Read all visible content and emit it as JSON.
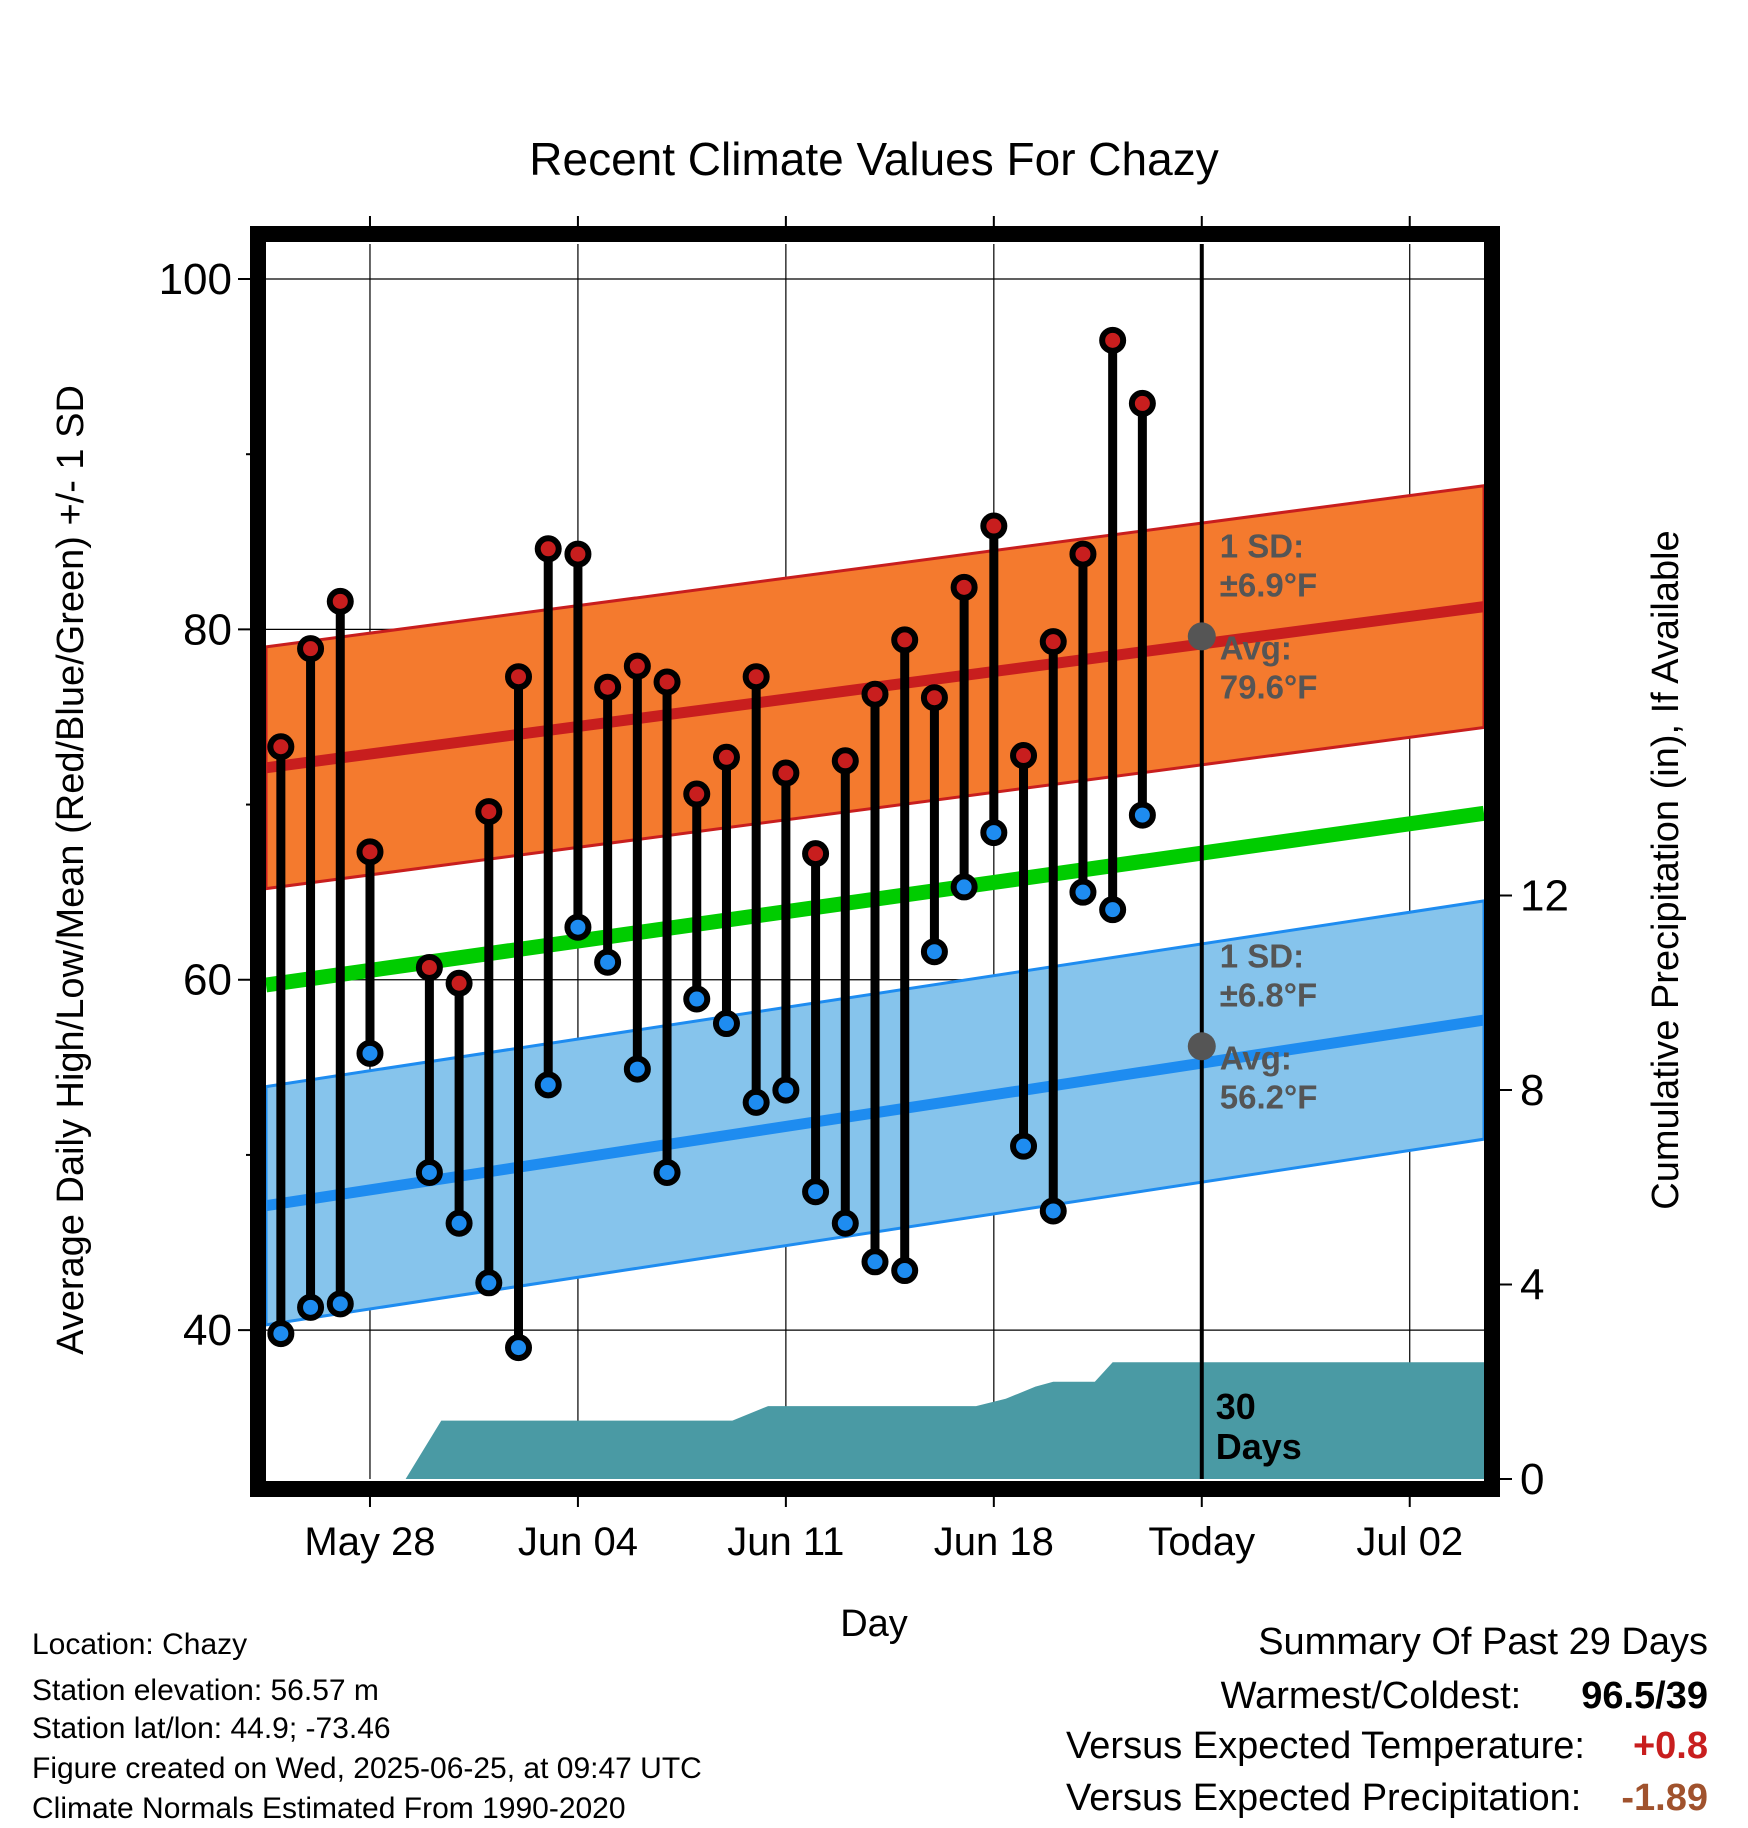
{
  "chart_data": {
    "type": "range-dot",
    "title": "Recent Climate Values For Chazy",
    "xlabel": "Day",
    "ylabel_left": "Average Daily High/Low/Mean (Red/Blue/Green) +/- 1 SD",
    "ylabel_right": "Cumulative Precipitation (in), If Available",
    "x_tick_labels": [
      "May 28",
      "Jun 04",
      "Jun 11",
      "Jun 18",
      "Today",
      "Jul 02"
    ],
    "y_left_ticks": [
      "40",
      "60",
      "80",
      "100"
    ],
    "y_right_ticks": [
      "0",
      "4",
      "8",
      "12"
    ],
    "ylim_left": [
      31.5,
      102
    ],
    "ylim_right": [
      0,
      25.4
    ],
    "x_days_range": [
      -31.5,
      9.5
    ],
    "x_tick_days": [
      -28,
      -21,
      -14,
      -7,
      0,
      7
    ],
    "today_day": 0,
    "colors": {
      "high": "#c81e1e",
      "low": "#1e8cf0",
      "mean": "#00cc00",
      "high_band": "#f47a2e",
      "low_band": "#86c4ec",
      "precip": "#4a9aa4"
    },
    "daily": {
      "days": [
        -31,
        -30,
        -29,
        -28,
        -27,
        -26,
        -25,
        -24,
        -23,
        -22,
        -21,
        -20,
        -19,
        -18,
        -17,
        -16,
        -15,
        -14,
        -13,
        -12,
        -11,
        -10,
        -9,
        -8,
        -7,
        -6,
        -5,
        -4,
        -3,
        -2,
        -1
      ],
      "high": [
        73.3,
        78.9,
        81.6,
        67.3,
        null,
        60.7,
        59.8,
        69.6,
        77.3,
        84.6,
        84.3,
        76.7,
        77.9,
        77.0,
        70.6,
        72.7,
        77.3,
        71.8,
        67.2,
        72.5,
        76.3,
        79.4,
        76.1,
        82.4,
        85.9,
        72.8,
        79.3,
        84.3,
        96.5,
        92.9,
        null
      ],
      "low": [
        39.8,
        41.3,
        41.5,
        55.8,
        null,
        49.0,
        46.1,
        42.7,
        39.0,
        54.0,
        63.0,
        61.0,
        54.9,
        49.0,
        58.9,
        57.5,
        53.0,
        53.7,
        47.9,
        46.1,
        43.9,
        43.4,
        61.6,
        65.3,
        68.4,
        50.5,
        46.8,
        65.0,
        64.0,
        69.4,
        null
      ]
    },
    "normals": {
      "days": [
        -32,
        9.5
      ],
      "high_avg": [
        72.1,
        81.3
      ],
      "high_sd": 6.9,
      "low_avg": [
        47.1,
        57.7
      ],
      "low_sd": 6.8,
      "mean_avg": [
        59.7,
        69.5
      ]
    },
    "today_normals": {
      "high_sd_label": "1 SD:",
      "high_sd_value": "±6.9°F",
      "high_avg_label": "Avg:",
      "high_avg_value": "79.6°F",
      "high_avg": 79.6,
      "low_sd_label": "1 SD:",
      "low_sd_value": "±6.8°F",
      "low_avg_label": "Avg:",
      "low_avg_value": "56.2°F",
      "low_avg": 56.2
    },
    "precip": {
      "days": [
        -32,
        -26.8,
        -25.6,
        -15.8,
        -14.6,
        -7.6,
        -6.6,
        -5.6,
        -5,
        -3.6,
        -3,
        9.5
      ],
      "cumulative_in": [
        0,
        0,
        1.2,
        1.2,
        1.5,
        1.5,
        1.65,
        1.9,
        2.0,
        2.0,
        2.4,
        2.4
      ]
    },
    "days_label_line1": "30",
    "days_label_line2": "Days"
  },
  "info": {
    "location": "Location: Chazy",
    "elevation": "Station elevation: 56.57 m",
    "latlon": "Station lat/lon: 44.9; -73.46",
    "created": "Figure created on Wed, 2025-06-25, at 09:47 UTC",
    "normals": "Climate Normals Estimated From 1990-2020"
  },
  "summary": {
    "title": "Summary Of Past 29 Days",
    "warm_cold_label": "Warmest/Coldest:",
    "warm_cold_value": "96.5/39",
    "temp_label": "Versus Expected Temperature:",
    "temp_value": "+0.8",
    "temp_color": "#c81e1e",
    "precip_label": "Versus Expected Precipitation:",
    "precip_value": "-1.89",
    "precip_color": "#a0522d"
  }
}
